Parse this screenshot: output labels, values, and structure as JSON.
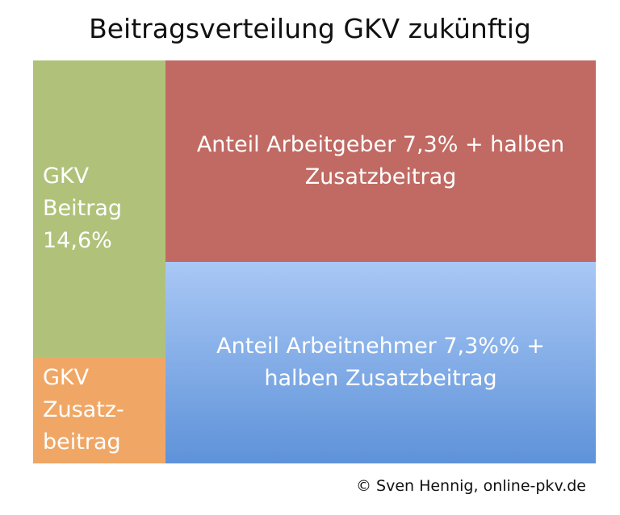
{
  "title": "Beitragsverteilung GKV zukünftig",
  "nodes": [
    {
      "lines": [
        "GKV",
        "Beitrag",
        "14,6%"
      ]
    },
    {
      "lines": [
        "GKV",
        "Zusatz-",
        "beitrag"
      ]
    },
    {
      "lines": [
        "Anteil Arbeitgeber 7,3% + halben",
        "Zusatzbeitrag"
      ]
    },
    {
      "lines": [
        "Anteil Arbeitnehmer 7,3%% +",
        "halben Zusatzbeitrag"
      ]
    }
  ],
  "credit": "© Sven Hennig, online-pkv.de"
}
